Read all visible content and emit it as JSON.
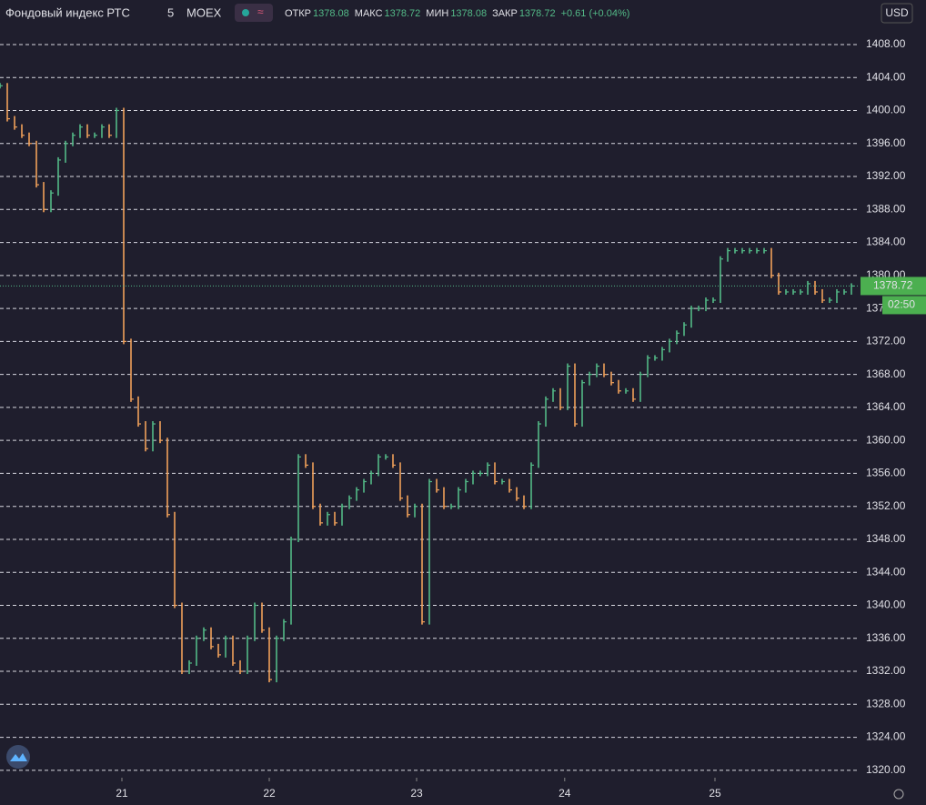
{
  "chart_data": {
    "type": "bars",
    "title": "Фондовый индекс РТС",
    "interval": "5",
    "exchange": "MOEX",
    "stats": [
      {
        "label": "ОТКР",
        "value": 1378.08
      },
      {
        "label": "МАКС",
        "value": 1378.72
      },
      {
        "label": "МИН",
        "value": 1378.08
      },
      {
        "label": "ЗАКР",
        "value": 1378.72
      }
    ],
    "change": "+0.61 (+0.04%)",
    "currency": "USD",
    "countdown": "02:50",
    "up_color": "#53b987",
    "down_color": "#f0a05a",
    "grid": true,
    "values": [
      1403,
      1399,
      1398,
      1397,
      1396,
      1391,
      1388,
      1390,
      1394,
      1396,
      1397,
      1398,
      1397,
      1397,
      1398,
      1397,
      1400,
      1372,
      1365,
      1362,
      1359,
      1362,
      1360,
      1351,
      1340,
      1332,
      1333,
      1336,
      1337,
      1335,
      1334,
      1336,
      1333,
      1332,
      1336,
      1340,
      1337,
      1331,
      1336,
      1338,
      1348,
      1358,
      1357,
      1352,
      1350,
      1351,
      1350,
      1352,
      1353,
      1354,
      1355,
      1356,
      1358,
      1358,
      1357,
      1353,
      1351,
      1352,
      1338,
      1355,
      1354,
      1352,
      1352,
      1354,
      1355,
      1356,
      1356,
      1357,
      1355,
      1355,
      1354,
      1353,
      1352,
      1357,
      1362,
      1365,
      1366,
      1364,
      1369,
      1362,
      1367,
      1368,
      1369,
      1368,
      1367,
      1366,
      1366,
      1365,
      1368,
      1370,
      1370,
      1371,
      1372,
      1373,
      1374,
      1376,
      1376,
      1377,
      1377,
      1382,
      1383,
      1383,
      1383,
      1383,
      1383,
      1383,
      1380,
      1378,
      1378,
      1378,
      1378,
      1379,
      1378,
      1377,
      1377,
      1378,
      1378,
      1378.72
    ],
    "xlim": [
      0,
      118.125
    ],
    "xticks": [
      {
        "value": 16.75,
        "label": "21"
      },
      {
        "value": 37,
        "label": "22"
      },
      {
        "value": 57.25,
        "label": "23"
      },
      {
        "value": 77.6,
        "label": "24"
      },
      {
        "value": 98.25,
        "label": "25"
      }
    ],
    "ylim": [
      1319.1,
      1413.4
    ],
    "yticks": [
      {
        "value": 1320,
        "label": "1320.00"
      },
      {
        "value": 1324,
        "label": "1324.00"
      },
      {
        "value": 1328,
        "label": "1328.00"
      },
      {
        "value": 1332,
        "label": "1332.00"
      },
      {
        "value": 1336,
        "label": "1336.00"
      },
      {
        "value": 1340,
        "label": "1340.00"
      },
      {
        "value": 1344,
        "label": "1344.00"
      },
      {
        "value": 1348,
        "label": "1348.00"
      },
      {
        "value": 1352,
        "label": "1352.00"
      },
      {
        "value": 1356,
        "label": "1356.00"
      },
      {
        "value": 1360,
        "label": "1360.00"
      },
      {
        "value": 1364,
        "label": "1364.00"
      },
      {
        "value": 1368,
        "label": "1368.00"
      },
      {
        "value": 1372,
        "label": "1372.00"
      },
      {
        "value": 1376,
        "label": "1376.00"
      },
      {
        "value": 1380,
        "label": "1380.00"
      },
      {
        "value": 1384,
        "label": "1384.00"
      },
      {
        "value": 1388,
        "label": "1388.00"
      },
      {
        "value": 1392,
        "label": "1392.00"
      },
      {
        "value": 1396,
        "label": "1396.00"
      },
      {
        "value": 1400,
        "label": "1400.00"
      },
      {
        "value": 1404,
        "label": "1404.00"
      },
      {
        "value": 1408,
        "label": "1408.00"
      }
    ]
  }
}
